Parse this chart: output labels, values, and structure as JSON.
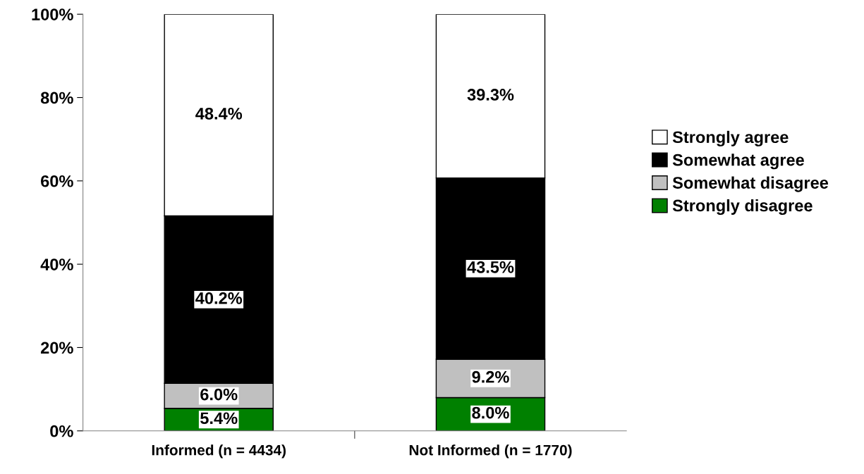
{
  "chart_data": {
    "type": "bar",
    "stacked": true,
    "categories": [
      "Informed (n = 4434)",
      "Not Informed (n = 1770)"
    ],
    "series": [
      {
        "name": "Strongly disagree",
        "color": "#008000",
        "values": [
          5.4,
          8.0
        ],
        "value_labels": [
          "5.4%",
          "8.0%"
        ]
      },
      {
        "name": "Somewhat disagree",
        "color": "#c0c0c0",
        "values": [
          6.0,
          9.2
        ],
        "value_labels": [
          "6.0%",
          "9.2%"
        ]
      },
      {
        "name": "Somewhat agree",
        "color": "#000000",
        "values": [
          40.2,
          43.5
        ],
        "value_labels": [
          "40.2%",
          "43.5%"
        ]
      },
      {
        "name": "Strongly agree",
        "color": "#ffffff",
        "values": [
          48.4,
          39.3
        ],
        "value_labels": [
          "48.4%",
          "39.3%"
        ]
      }
    ],
    "ylim": [
      0,
      100
    ],
    "yticks": [
      {
        "value": 0,
        "label": "0%"
      },
      {
        "value": 20,
        "label": "20%"
      },
      {
        "value": 40,
        "label": "40%"
      },
      {
        "value": 60,
        "label": "60%"
      },
      {
        "value": 80,
        "label": "80%"
      },
      {
        "value": 100,
        "label": "100%"
      }
    ],
    "grid": false,
    "legend": "right"
  }
}
